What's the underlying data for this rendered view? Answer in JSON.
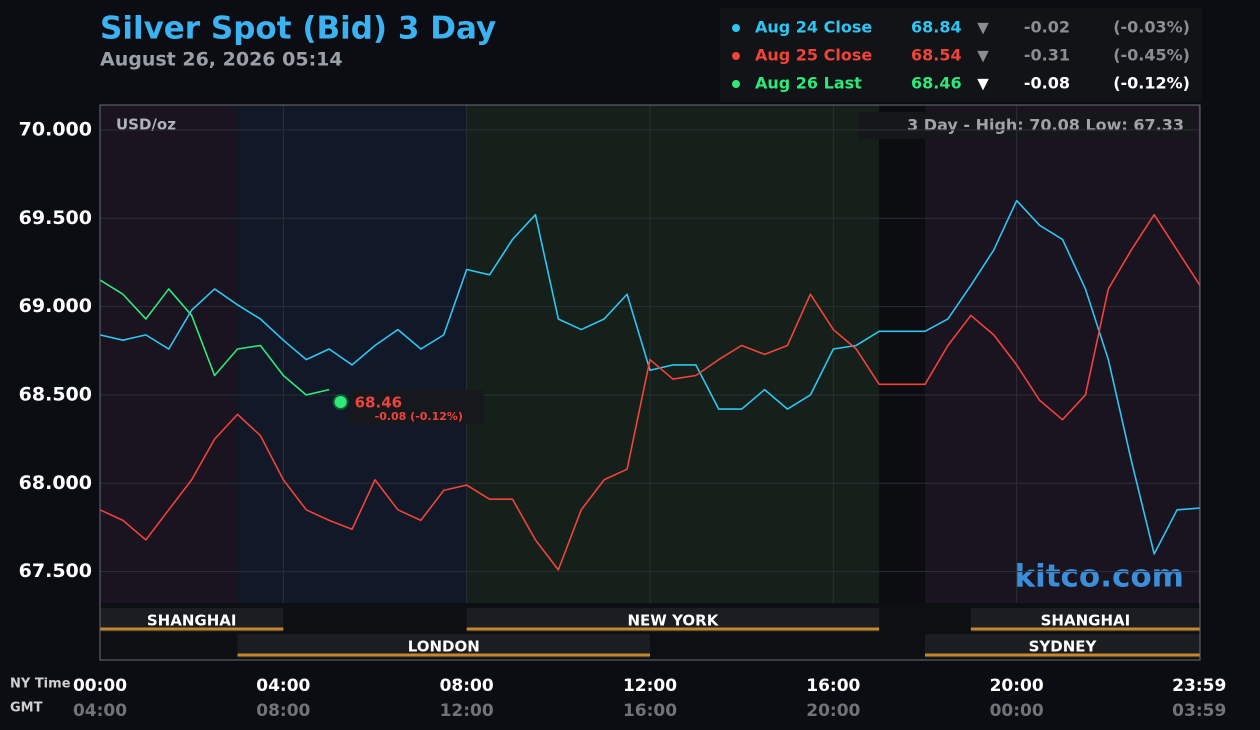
{
  "chart_data": {
    "type": "line",
    "title": "Silver Spot (Bid) 3 Day",
    "subtitle": "August 26, 2026 05:14",
    "unit_label": "USD/oz",
    "range_label": "3 Day - High: 70.08  Low: 67.33",
    "watermark": "kitco.com",
    "x_axis_label": "NY Time",
    "x2_axis_label": "GMT",
    "x": [
      0,
      0.5,
      1,
      1.5,
      2,
      2.5,
      3,
      3.5,
      4,
      4.5,
      5,
      5.5,
      6,
      6.5,
      7,
      7.5,
      8,
      8.5,
      9,
      9.5,
      10,
      10.5,
      11,
      11.5,
      12,
      12.5,
      13,
      13.5,
      14,
      14.5,
      15,
      15.5,
      16,
      16.5,
      17,
      17.5,
      18,
      18.5,
      19,
      19.5,
      20,
      20.5,
      21,
      21.5,
      22,
      22.5,
      23,
      23.5,
      24
    ],
    "xlim": [
      0,
      24
    ],
    "xticks": [
      {
        "value": 0,
        "label": "00:00"
      },
      {
        "value": 4,
        "label": "04:00"
      },
      {
        "value": 8,
        "label": "08:00"
      },
      {
        "value": 12,
        "label": "12:00"
      },
      {
        "value": 16,
        "label": "16:00"
      },
      {
        "value": 20,
        "label": "20:00"
      },
      {
        "value": 23.983,
        "label": "23:59"
      }
    ],
    "xticks_gmt": [
      "04:00",
      "08:00",
      "12:00",
      "16:00",
      "20:00",
      "00:00",
      "03:59"
    ],
    "ylim": [
      67.0,
      70.141
    ],
    "yticks": [
      {
        "value": 67.5,
        "label": "67.500"
      },
      {
        "value": 68,
        "label": "68.000"
      },
      {
        "value": 68.5,
        "label": "68.500"
      },
      {
        "value": 69,
        "label": "69.000"
      },
      {
        "value": 69.5,
        "label": "69.500"
      },
      {
        "value": 70,
        "label": "70.000"
      }
    ],
    "grid": true,
    "sessions": [
      {
        "name": "SHANGHAI",
        "start": 0,
        "end": 4
      },
      {
        "name": "LONDON",
        "start": 3,
        "end": 12
      },
      {
        "name": "NEW YORK",
        "start": 8,
        "end": 17
      },
      {
        "name": "SYDNEY",
        "start": 18,
        "end": 24
      },
      {
        "name": "SHANGHAI",
        "start": 19,
        "end": 24
      }
    ],
    "series": [
      {
        "name": "Aug 24 Close",
        "color": "#2ec5f2",
        "last": 68.84,
        "arrow": "▼",
        "change": -0.02,
        "change_pct": {
          "value": -0.03,
          "label": "(-0.03%)"
        },
        "values": [
          68.84,
          68.81,
          68.84,
          68.76,
          68.98,
          69.1,
          69.01,
          68.93,
          68.81,
          68.7,
          68.76,
          68.67,
          68.78,
          68.87,
          68.76,
          68.84,
          69.21,
          69.18,
          69.38,
          69.52,
          68.93,
          68.87,
          68.93,
          69.07,
          68.64,
          68.67,
          68.67,
          68.42,
          68.42,
          68.53,
          68.42,
          68.5,
          68.76,
          68.78,
          68.86,
          68.86,
          68.86,
          68.93,
          69.12,
          69.32,
          69.6,
          69.46,
          69.38,
          69.1,
          68.7,
          68.13,
          67.6,
          67.85,
          67.86
        ]
      },
      {
        "name": "Aug 25 Close",
        "color": "#f0433a",
        "last": 68.54,
        "arrow": "▼",
        "change": -0.31,
        "change_pct": {
          "value": -0.45,
          "label": "(-0.45%)"
        },
        "values": [
          67.85,
          67.79,
          67.68,
          67.85,
          68.02,
          68.25,
          68.39,
          68.27,
          68.02,
          67.85,
          67.79,
          67.74,
          68.02,
          67.85,
          67.79,
          67.96,
          67.99,
          67.91,
          67.91,
          67.68,
          67.51,
          67.85,
          68.02,
          68.08,
          68.7,
          68.59,
          68.61,
          68.7,
          68.78,
          68.73,
          68.78,
          69.07,
          68.87,
          68.76,
          68.56,
          68.56,
          68.56,
          68.78,
          68.95,
          68.84,
          68.67,
          68.47,
          68.36,
          68.5,
          69.1,
          69.32,
          69.52,
          69.32,
          69.12
        ]
      },
      {
        "name": "Aug 26 Last",
        "color": "#2ee87a",
        "last": 68.46,
        "arrow": "▼",
        "change": -0.08,
        "change_pct": {
          "value": -0.12,
          "label": "(-0.12%)"
        },
        "values": [
          69.15,
          69.07,
          68.93,
          69.1,
          68.95,
          68.61,
          68.76,
          68.78,
          68.61,
          68.5,
          68.53,
          null,
          null,
          null,
          null,
          null,
          null,
          null,
          null,
          null,
          null,
          null,
          null,
          null,
          null,
          null,
          null,
          null,
          null,
          null,
          null,
          null,
          null,
          null,
          null,
          null,
          null,
          null,
          null,
          null,
          null,
          null,
          null,
          null,
          null,
          null,
          null,
          null,
          null
        ]
      }
    ],
    "annotation": {
      "x": 5.25,
      "value": 68.46,
      "text": "-0.08 (-0.12%)"
    }
  }
}
